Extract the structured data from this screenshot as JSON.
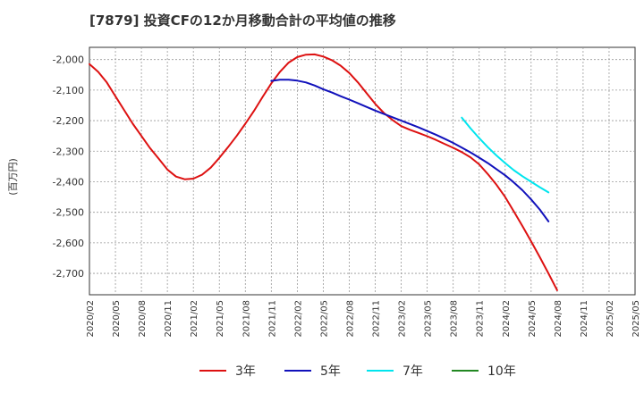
{
  "chart_data": {
    "type": "line",
    "title": "[7879]  投資CFの12か月移動合計の平均値の推移",
    "ylabel": "(百万円)",
    "xlabel": "",
    "ylim": [
      -2770,
      -1960
    ],
    "y_ticks": [
      -2000,
      -2100,
      -2200,
      -2300,
      -2400,
      -2500,
      -2600,
      -2700
    ],
    "y_tick_labels": [
      "-2,000",
      "-2,100",
      "-2,200",
      "-2,300",
      "-2,400",
      "-2,500",
      "-2,600",
      "-2,700"
    ],
    "x_range": [
      "2020-02",
      "2025-05"
    ],
    "x_ticks": [
      "2020/02",
      "2020/05",
      "2020/08",
      "2020/11",
      "2021/02",
      "2021/05",
      "2021/08",
      "2021/11",
      "2022/02",
      "2022/05",
      "2022/08",
      "2022/11",
      "2023/02",
      "2023/05",
      "2023/08",
      "2023/11",
      "2024/02",
      "2024/05",
      "2024/08",
      "2024/11",
      "2025/02",
      "2025/05"
    ],
    "grid": true,
    "legend_position": "bottom",
    "series": [
      {
        "name": "3年",
        "color": "#dd1111",
        "points": [
          [
            "2020-02",
            -2015
          ],
          [
            "2020-03",
            -2040
          ],
          [
            "2020-04",
            -2075
          ],
          [
            "2020-05",
            -2120
          ],
          [
            "2020-06",
            -2165
          ],
          [
            "2020-07",
            -2210
          ],
          [
            "2020-08",
            -2250
          ],
          [
            "2020-09",
            -2290
          ],
          [
            "2020-10",
            -2325
          ],
          [
            "2020-11",
            -2360
          ],
          [
            "2020-12",
            -2383
          ],
          [
            "2021-01",
            -2392
          ],
          [
            "2021-02",
            -2390
          ],
          [
            "2021-03",
            -2377
          ],
          [
            "2021-04",
            -2354
          ],
          [
            "2021-05",
            -2322
          ],
          [
            "2021-06",
            -2287
          ],
          [
            "2021-07",
            -2250
          ],
          [
            "2021-08",
            -2210
          ],
          [
            "2021-09",
            -2168
          ],
          [
            "2021-10",
            -2122
          ],
          [
            "2021-11",
            -2078
          ],
          [
            "2021-12",
            -2040
          ],
          [
            "2022-01",
            -2010
          ],
          [
            "2022-02",
            -1992
          ],
          [
            "2022-03",
            -1984
          ],
          [
            "2022-04",
            -1983
          ],
          [
            "2022-05",
            -1990
          ],
          [
            "2022-06",
            -2002
          ],
          [
            "2022-07",
            -2020
          ],
          [
            "2022-08",
            -2044
          ],
          [
            "2022-09",
            -2075
          ],
          [
            "2022-10",
            -2110
          ],
          [
            "2022-11",
            -2145
          ],
          [
            "2022-12",
            -2175
          ],
          [
            "2023-01",
            -2198
          ],
          [
            "2023-02",
            -2218
          ],
          [
            "2023-03",
            -2230
          ],
          [
            "2023-04",
            -2240
          ],
          [
            "2023-05",
            -2251
          ],
          [
            "2023-06",
            -2263
          ],
          [
            "2023-07",
            -2276
          ],
          [
            "2023-08",
            -2289
          ],
          [
            "2023-09",
            -2303
          ],
          [
            "2023-10",
            -2320
          ],
          [
            "2023-11",
            -2343
          ],
          [
            "2023-12",
            -2375
          ],
          [
            "2024-01",
            -2410
          ],
          [
            "2024-02",
            -2450
          ],
          [
            "2024-03",
            -2497
          ],
          [
            "2024-04",
            -2545
          ],
          [
            "2024-05",
            -2595
          ],
          [
            "2024-06",
            -2647
          ],
          [
            "2024-07",
            -2700
          ],
          [
            "2024-08",
            -2755
          ]
        ]
      },
      {
        "name": "5年",
        "color": "#1111bb",
        "points": [
          [
            "2021-11",
            -2070
          ],
          [
            "2021-12",
            -2066
          ],
          [
            "2022-01",
            -2066
          ],
          [
            "2022-02",
            -2069
          ],
          [
            "2022-03",
            -2075
          ],
          [
            "2022-04",
            -2085
          ],
          [
            "2022-05",
            -2097
          ],
          [
            "2022-06",
            -2108
          ],
          [
            "2022-07",
            -2120
          ],
          [
            "2022-08",
            -2131
          ],
          [
            "2022-09",
            -2143
          ],
          [
            "2022-10",
            -2155
          ],
          [
            "2022-11",
            -2167
          ],
          [
            "2022-12",
            -2178
          ],
          [
            "2023-01",
            -2189
          ],
          [
            "2023-02",
            -2200
          ],
          [
            "2023-03",
            -2211
          ],
          [
            "2023-04",
            -2222
          ],
          [
            "2023-05",
            -2234
          ],
          [
            "2023-06",
            -2246
          ],
          [
            "2023-07",
            -2259
          ],
          [
            "2023-08",
            -2273
          ],
          [
            "2023-09",
            -2288
          ],
          [
            "2023-10",
            -2304
          ],
          [
            "2023-11",
            -2321
          ],
          [
            "2023-12",
            -2339
          ],
          [
            "2024-01",
            -2359
          ],
          [
            "2024-02",
            -2379
          ],
          [
            "2024-03",
            -2402
          ],
          [
            "2024-04",
            -2428
          ],
          [
            "2024-05",
            -2458
          ],
          [
            "2024-06",
            -2491
          ],
          [
            "2024-07",
            -2530
          ]
        ]
      },
      {
        "name": "7年",
        "color": "#00e5ee",
        "points": [
          [
            "2023-09",
            -2190
          ],
          [
            "2023-10",
            -2225
          ],
          [
            "2023-11",
            -2257
          ],
          [
            "2023-12",
            -2287
          ],
          [
            "2024-01",
            -2314
          ],
          [
            "2024-02",
            -2339
          ],
          [
            "2024-03",
            -2362
          ],
          [
            "2024-04",
            -2382
          ],
          [
            "2024-05",
            -2400
          ],
          [
            "2024-06",
            -2418
          ],
          [
            "2024-07",
            -2435
          ]
        ]
      },
      {
        "name": "10年",
        "color": "#228822",
        "points": []
      }
    ]
  }
}
